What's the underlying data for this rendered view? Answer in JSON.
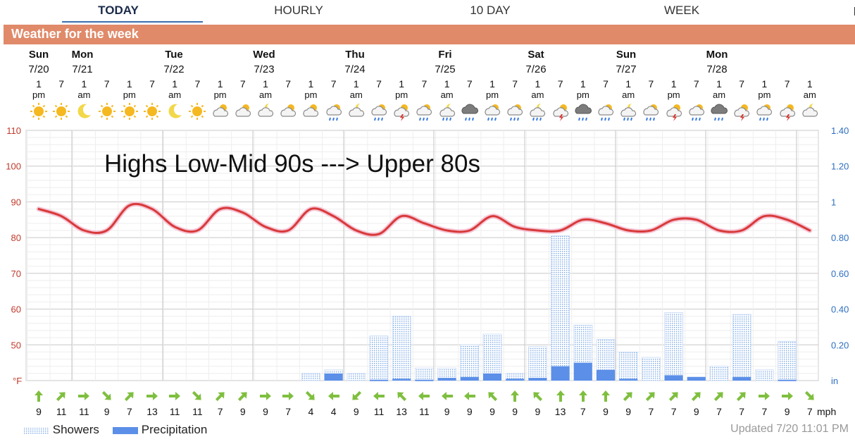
{
  "tabs": [
    "TODAY",
    "HOURLY",
    "10 DAY",
    "WEEK"
  ],
  "header_title": "Weather for the week",
  "days": [
    {
      "name": "Sun",
      "date": "7/20"
    },
    {
      "name": "Mon",
      "date": "7/21"
    },
    {
      "name": "Tue",
      "date": "7/22"
    },
    {
      "name": "Wed",
      "date": "7/23"
    },
    {
      "name": "Thu",
      "date": "7/24"
    },
    {
      "name": "Fri",
      "date": "7/25"
    },
    {
      "name": "Sat",
      "date": "7/26"
    },
    {
      "name": "Sun",
      "date": "7/27"
    },
    {
      "name": "Mon",
      "date": "7/28"
    }
  ],
  "hour_labels": [
    [
      "1",
      "pm"
    ],
    [
      "7",
      ""
    ],
    [
      "1",
      "am"
    ],
    [
      "7",
      ""
    ],
    [
      "1",
      "pm"
    ],
    [
      "7",
      ""
    ],
    [
      "1",
      "am"
    ],
    [
      "7",
      ""
    ],
    [
      "1",
      "pm"
    ],
    [
      "7",
      ""
    ],
    [
      "1",
      "am"
    ],
    [
      "7",
      ""
    ],
    [
      "1",
      "pm"
    ],
    [
      "7",
      ""
    ],
    [
      "1",
      "am"
    ],
    [
      "7",
      ""
    ],
    [
      "1",
      "pm"
    ],
    [
      "7",
      ""
    ],
    [
      "1",
      "am"
    ],
    [
      "7",
      ""
    ],
    [
      "1",
      "pm"
    ],
    [
      "7",
      ""
    ],
    [
      "1",
      "am"
    ],
    [
      "7",
      ""
    ],
    [
      "1",
      "pm"
    ],
    [
      "7",
      ""
    ],
    [
      "1",
      "am"
    ],
    [
      "7",
      ""
    ],
    [
      "1",
      "pm"
    ],
    [
      "7",
      ""
    ],
    [
      "1",
      "am"
    ],
    [
      "7",
      ""
    ],
    [
      "1",
      "pm"
    ],
    [
      "7",
      ""
    ],
    [
      "1",
      "am"
    ]
  ],
  "icons": [
    "sun-icon",
    "sun-icon",
    "moon-icon",
    "sun-icon",
    "sun-icon",
    "sun-icon",
    "moon-icon",
    "sun-icon",
    "partly-cloudy-icon",
    "partly-cloudy-icon",
    "partly-cloudy-night-icon",
    "partly-cloudy-icon",
    "partly-cloudy-icon",
    "partly-cloudy-rain-icon",
    "partly-cloudy-night-icon",
    "partly-cloudy-rain-icon",
    "thunderstorm-icon",
    "partly-cloudy-rain-icon",
    "partly-cloudy-night-rain-icon",
    "cloudy-rain-icon",
    "partly-cloudy-rain-icon",
    "partly-cloudy-rain-icon",
    "partly-cloudy-night-rain-icon",
    "thunderstorm-icon",
    "cloudy-rain-icon",
    "partly-cloudy-rain-icon",
    "partly-cloudy-night-rain-icon",
    "partly-cloudy-rain-icon",
    "thunderstorm-icon",
    "partly-cloudy-rain-icon",
    "cloudy-rain-icon",
    "thunderstorm-icon",
    "partly-cloudy-rain-icon",
    "thunderstorm-icon",
    "partly-cloudy-night-icon"
  ],
  "wind": {
    "directions_deg": [
      0,
      45,
      90,
      135,
      45,
      90,
      90,
      135,
      45,
      45,
      90,
      90,
      135,
      270,
      225,
      270,
      315,
      270,
      270,
      270,
      315,
      0,
      315,
      0,
      0,
      0,
      45,
      45,
      45,
      45,
      45,
      45,
      90,
      90,
      135
    ],
    "speeds": [
      "9",
      "11",
      "11",
      "9",
      "7",
      "13",
      "11",
      "11",
      "7",
      "9",
      "9",
      "7",
      "4",
      "4",
      "9",
      "11",
      "13",
      "11",
      "9",
      "9",
      "9",
      "9",
      "9",
      "13",
      "7",
      "9",
      "9",
      "7",
      "7",
      "9",
      "7",
      "7",
      "7",
      "9",
      "7"
    ],
    "unit": "mph"
  },
  "chart_data": {
    "type": "line",
    "annotation": "Highs Low-Mid 90s  ---> Upper 80s",
    "left_axis": {
      "ticks": [
        "110",
        "100",
        "90",
        "80",
        "70",
        "60",
        "50"
      ],
      "unit": "°F",
      "range": [
        40,
        110
      ]
    },
    "right_axis": {
      "ticks": [
        "1.40",
        "1.20",
        "1",
        "0.80",
        "0.60",
        "0.40",
        "0.20"
      ],
      "unit": "in",
      "range": [
        0,
        1.4
      ]
    },
    "temperature": {
      "x_hours": [
        0,
        1,
        2,
        3,
        4,
        5,
        6,
        7,
        8,
        9,
        10,
        11,
        12,
        13,
        14,
        15,
        16,
        17,
        18,
        19,
        20,
        21,
        22,
        23,
        24,
        25,
        26,
        27,
        28,
        29,
        30,
        31,
        32,
        33,
        34
      ],
      "values": [
        88,
        86,
        82,
        82,
        89,
        88,
        83,
        82,
        88,
        87,
        83,
        82,
        88,
        86,
        82,
        81,
        86,
        84,
        82,
        82,
        86,
        83,
        82,
        82,
        85,
        84,
        82,
        82,
        85,
        85,
        82,
        82,
        86,
        85,
        82
      ]
    },
    "showers": {
      "name": "Showers",
      "values": [
        0,
        0,
        0,
        0,
        0,
        0,
        0,
        0,
        0,
        0,
        0,
        0,
        0.04,
        0.06,
        0.04,
        0.25,
        0.36,
        0.07,
        0.07,
        0.2,
        0.26,
        0.04,
        0.19,
        0.81,
        0.31,
        0.23,
        0.16,
        0.13,
        0.38,
        0.02,
        0.08,
        0.37,
        0.06,
        0.22,
        0
      ]
    },
    "precipitation": {
      "name": "Precipitation",
      "values": [
        0,
        0,
        0,
        0,
        0,
        0,
        0,
        0,
        0,
        0,
        0,
        0,
        0,
        0.04,
        0,
        0.005,
        0.01,
        0.005,
        0.015,
        0.02,
        0.04,
        0.01,
        0.015,
        0.08,
        0.1,
        0.06,
        0.01,
        0,
        0.03,
        0.02,
        0,
        0.02,
        0,
        0.005,
        0
      ]
    },
    "legend": [
      "Showers",
      "Precipitation"
    ]
  },
  "updated": "Updated 7/20 11:01 PM",
  "colors": {
    "temp_line": "#d83a3a",
    "shower_fill": "#a8c6ee",
    "precip_fill": "#5b8fe8",
    "header": "#e08a6a",
    "arrow": "#7fbf3f"
  }
}
